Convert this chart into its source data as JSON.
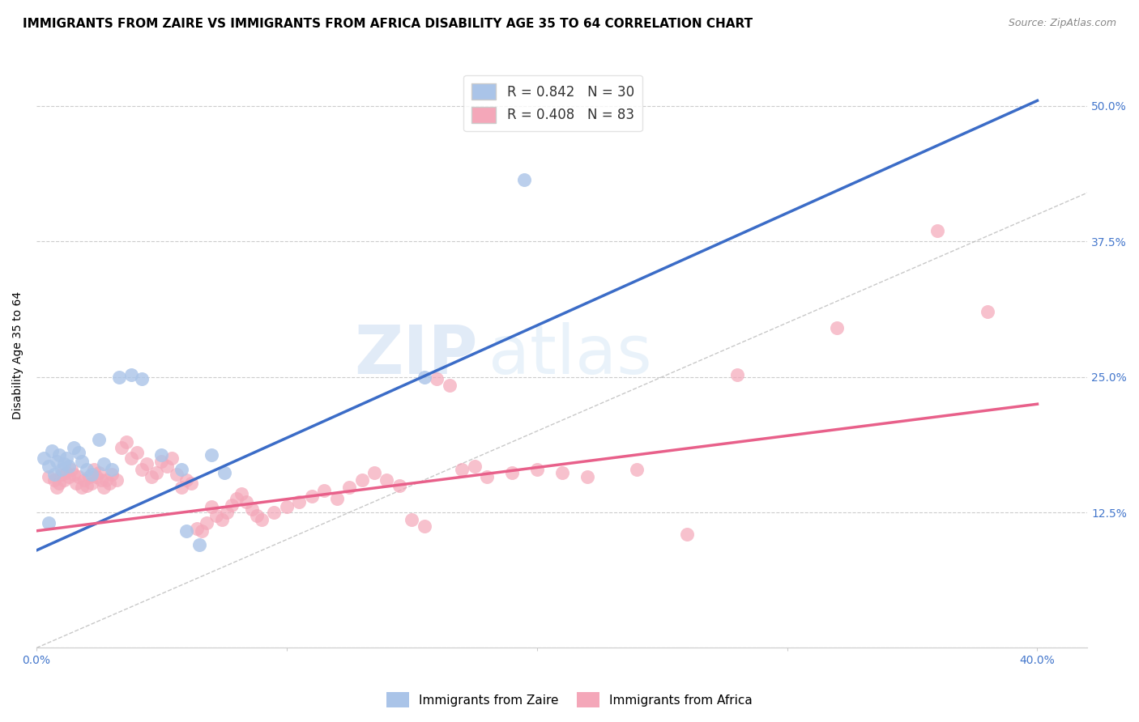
{
  "title": "IMMIGRANTS FROM ZAIRE VS IMMIGRANTS FROM AFRICA DISABILITY AGE 35 TO 64 CORRELATION CHART",
  "source": "Source: ZipAtlas.com",
  "ylabel": "Disability Age 35 to 64",
  "xlim": [
    0.0,
    0.42
  ],
  "ylim": [
    0.0,
    0.54
  ],
  "xticks": [
    0.0,
    0.1,
    0.2,
    0.3,
    0.4
  ],
  "xtick_labels": [
    "0.0%",
    "",
    "",
    "",
    "40.0%"
  ],
  "ytick_labels": [
    "",
    "12.5%",
    "25.0%",
    "37.5%",
    "50.0%"
  ],
  "yticks": [
    0.0,
    0.125,
    0.25,
    0.375,
    0.5
  ],
  "grid_color": "#cccccc",
  "background_color": "#ffffff",
  "zaire_color": "#aac4e8",
  "africa_color": "#f4a7b9",
  "zaire_line_color": "#3b6cc7",
  "africa_line_color": "#e8608a",
  "tick_color": "#4477cc",
  "zaire_R": 0.842,
  "zaire_N": 30,
  "africa_R": 0.408,
  "africa_N": 83,
  "zaire_line_x0": 0.0,
  "zaire_line_y0": 0.09,
  "zaire_line_x1": 0.4,
  "zaire_line_y1": 0.505,
  "africa_line_x0": 0.0,
  "africa_line_y0": 0.108,
  "africa_line_x1": 0.4,
  "africa_line_y1": 0.225,
  "zaire_points": [
    [
      0.003,
      0.175
    ],
    [
      0.005,
      0.168
    ],
    [
      0.006,
      0.182
    ],
    [
      0.007,
      0.16
    ],
    [
      0.008,
      0.172
    ],
    [
      0.009,
      0.178
    ],
    [
      0.01,
      0.165
    ],
    [
      0.011,
      0.17
    ],
    [
      0.012,
      0.175
    ],
    [
      0.013,
      0.168
    ],
    [
      0.015,
      0.185
    ],
    [
      0.017,
      0.18
    ],
    [
      0.018,
      0.172
    ],
    [
      0.02,
      0.165
    ],
    [
      0.022,
      0.16
    ],
    [
      0.025,
      0.192
    ],
    [
      0.027,
      0.17
    ],
    [
      0.03,
      0.165
    ],
    [
      0.033,
      0.25
    ],
    [
      0.038,
      0.252
    ],
    [
      0.042,
      0.248
    ],
    [
      0.05,
      0.178
    ],
    [
      0.058,
      0.165
    ],
    [
      0.06,
      0.108
    ],
    [
      0.065,
      0.095
    ],
    [
      0.07,
      0.178
    ],
    [
      0.075,
      0.162
    ],
    [
      0.155,
      0.25
    ],
    [
      0.195,
      0.432
    ],
    [
      0.005,
      0.115
    ]
  ],
  "africa_points": [
    [
      0.005,
      0.158
    ],
    [
      0.007,
      0.155
    ],
    [
      0.008,
      0.148
    ],
    [
      0.009,
      0.152
    ],
    [
      0.01,
      0.16
    ],
    [
      0.011,
      0.155
    ],
    [
      0.012,
      0.162
    ],
    [
      0.013,
      0.158
    ],
    [
      0.014,
      0.165
    ],
    [
      0.015,
      0.16
    ],
    [
      0.016,
      0.152
    ],
    [
      0.017,
      0.158
    ],
    [
      0.018,
      0.148
    ],
    [
      0.019,
      0.155
    ],
    [
      0.02,
      0.15
    ],
    [
      0.021,
      0.158
    ],
    [
      0.022,
      0.152
    ],
    [
      0.023,
      0.165
    ],
    [
      0.024,
      0.158
    ],
    [
      0.025,
      0.162
    ],
    [
      0.026,
      0.155
    ],
    [
      0.027,
      0.148
    ],
    [
      0.028,
      0.155
    ],
    [
      0.029,
      0.152
    ],
    [
      0.03,
      0.16
    ],
    [
      0.032,
      0.155
    ],
    [
      0.034,
      0.185
    ],
    [
      0.036,
      0.19
    ],
    [
      0.038,
      0.175
    ],
    [
      0.04,
      0.18
    ],
    [
      0.042,
      0.165
    ],
    [
      0.044,
      0.17
    ],
    [
      0.046,
      0.158
    ],
    [
      0.048,
      0.162
    ],
    [
      0.05,
      0.172
    ],
    [
      0.052,
      0.168
    ],
    [
      0.054,
      0.175
    ],
    [
      0.056,
      0.16
    ],
    [
      0.058,
      0.148
    ],
    [
      0.06,
      0.155
    ],
    [
      0.062,
      0.152
    ],
    [
      0.064,
      0.11
    ],
    [
      0.066,
      0.108
    ],
    [
      0.068,
      0.115
    ],
    [
      0.07,
      0.13
    ],
    [
      0.072,
      0.122
    ],
    [
      0.074,
      0.118
    ],
    [
      0.076,
      0.125
    ],
    [
      0.078,
      0.132
    ],
    [
      0.08,
      0.138
    ],
    [
      0.082,
      0.142
    ],
    [
      0.084,
      0.135
    ],
    [
      0.086,
      0.128
    ],
    [
      0.088,
      0.122
    ],
    [
      0.09,
      0.118
    ],
    [
      0.095,
      0.125
    ],
    [
      0.1,
      0.13
    ],
    [
      0.105,
      0.135
    ],
    [
      0.11,
      0.14
    ],
    [
      0.115,
      0.145
    ],
    [
      0.12,
      0.138
    ],
    [
      0.125,
      0.148
    ],
    [
      0.13,
      0.155
    ],
    [
      0.135,
      0.162
    ],
    [
      0.14,
      0.155
    ],
    [
      0.145,
      0.15
    ],
    [
      0.15,
      0.118
    ],
    [
      0.155,
      0.112
    ],
    [
      0.16,
      0.248
    ],
    [
      0.165,
      0.242
    ],
    [
      0.17,
      0.165
    ],
    [
      0.175,
      0.168
    ],
    [
      0.18,
      0.158
    ],
    [
      0.19,
      0.162
    ],
    [
      0.2,
      0.165
    ],
    [
      0.21,
      0.162
    ],
    [
      0.22,
      0.158
    ],
    [
      0.24,
      0.165
    ],
    [
      0.26,
      0.105
    ],
    [
      0.28,
      0.252
    ],
    [
      0.32,
      0.295
    ],
    [
      0.36,
      0.385
    ],
    [
      0.38,
      0.31
    ]
  ],
  "title_fontsize": 11,
  "label_fontsize": 10,
  "tick_fontsize": 10,
  "legend_fontsize": 12
}
